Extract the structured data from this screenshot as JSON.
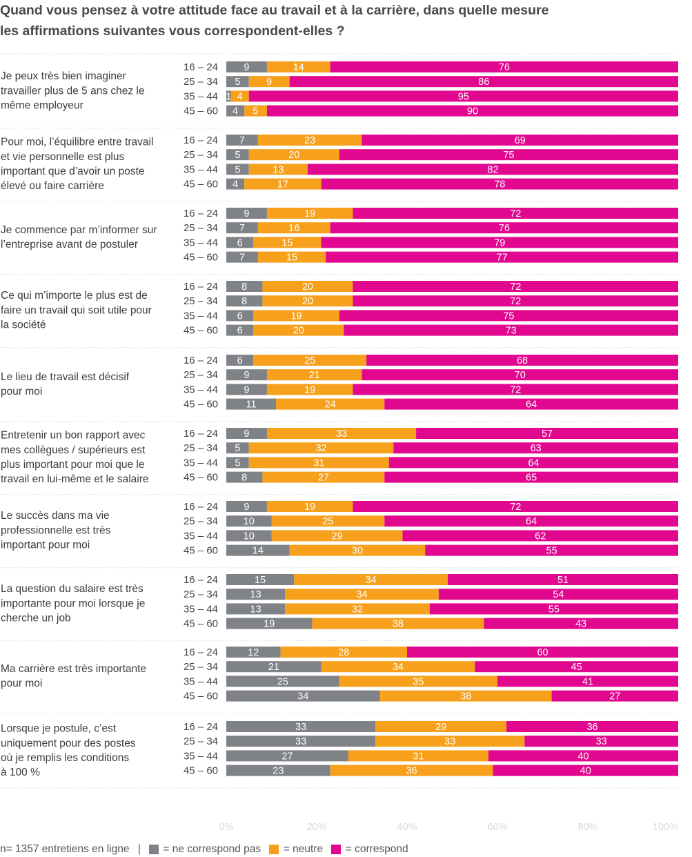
{
  "chart_data": {
    "type": "bar",
    "orientation": "horizontal",
    "stacked": true,
    "title": "Quand vous pensez à votre attitude face au travail et à la carrière, dans quelle mesure les affirmations suivantes vous correspondent-elles ?",
    "title_lines": [
      "Quand vous pensez à votre attitude face au travail et à la carrière, dans quelle mesure",
      "les affirmations suivantes vous correspondent-elles ?"
    ],
    "age_groups": [
      "16 – 24",
      "25 – 34",
      "35 – 44",
      "45 – 60"
    ],
    "series": [
      {
        "name": "ne correspond pas",
        "color": "#7f8286"
      },
      {
        "name": "neutre",
        "color": "#f7a01c"
      },
      {
        "name": "correspond",
        "color": "#e1088f"
      }
    ],
    "xlim": [
      0,
      100
    ],
    "x_ticks": [
      "0%",
      "20%",
      "40%",
      "60%",
      "80%",
      "100%"
    ],
    "grid": false,
    "legend_position": "bottom-left",
    "groups": [
      {
        "statement": [
          "Je peux très bien imaginer",
          "travailler plus de 5 ans chez le",
          "même employeur"
        ],
        "values": [
          [
            9,
            14,
            76
          ],
          [
            5,
            9,
            86
          ],
          [
            1,
            4,
            95
          ],
          [
            4,
            5,
            90
          ]
        ]
      },
      {
        "statement": [
          "Pour moi, l’équilibre entre travail",
          "et vie personnelle est plus",
          "important que d’avoir un poste",
          "élevé ou faire carrière"
        ],
        "values": [
          [
            7,
            23,
            69
          ],
          [
            5,
            20,
            75
          ],
          [
            5,
            13,
            82
          ],
          [
            4,
            17,
            78
          ]
        ]
      },
      {
        "statement": [
          "Je commence par m’informer sur",
          "l’entreprise avant de postuler"
        ],
        "values": [
          [
            9,
            19,
            72
          ],
          [
            7,
            16,
            76
          ],
          [
            6,
            15,
            79
          ],
          [
            7,
            15,
            77
          ]
        ]
      },
      {
        "statement": [
          "Ce qui m’importe le plus est de",
          "faire un travail qui soit utile pour",
          "la société"
        ],
        "values": [
          [
            8,
            20,
            72
          ],
          [
            8,
            20,
            72
          ],
          [
            6,
            19,
            75
          ],
          [
            6,
            20,
            73
          ]
        ]
      },
      {
        "statement": [
          "Le lieu de travail est décisif",
          "pour moi"
        ],
        "values": [
          [
            6,
            25,
            68
          ],
          [
            9,
            21,
            70
          ],
          [
            9,
            19,
            72
          ],
          [
            11,
            24,
            64
          ]
        ]
      },
      {
        "statement": [
          "Entretenir un bon rapport avec",
          "mes collègues / supérieurs est",
          "plus important pour moi que le",
          "travail en lui-même et le salaire"
        ],
        "values": [
          [
            9,
            33,
            57
          ],
          [
            5,
            32,
            63
          ],
          [
            5,
            31,
            64
          ],
          [
            8,
            27,
            65
          ]
        ]
      },
      {
        "statement": [
          "Le succès dans ma vie",
          "professionnelle est très",
          "important pour moi"
        ],
        "values": [
          [
            9,
            19,
            72
          ],
          [
            10,
            25,
            64
          ],
          [
            10,
            29,
            62
          ],
          [
            14,
            30,
            55
          ]
        ]
      },
      {
        "statement": [
          "La question du salaire est très",
          "importante pour moi lorsque je",
          "cherche un job"
        ],
        "values": [
          [
            15,
            34,
            51
          ],
          [
            13,
            34,
            54
          ],
          [
            13,
            32,
            55
          ],
          [
            19,
            38,
            43
          ]
        ]
      },
      {
        "statement": [
          "Ma carrière est très importante",
          "pour moi"
        ],
        "values": [
          [
            12,
            28,
            60
          ],
          [
            21,
            34,
            45
          ],
          [
            25,
            35,
            41
          ],
          [
            34,
            38,
            27
          ]
        ]
      },
      {
        "statement": [
          "Lorsque je postule, c’est",
          "uniquement pour des postes",
          "où je remplis les conditions",
          "à 100 %"
        ],
        "values": [
          [
            33,
            29,
            36
          ],
          [
            33,
            33,
            33
          ],
          [
            27,
            31,
            40
          ],
          [
            23,
            36,
            40
          ]
        ]
      }
    ]
  },
  "footer": {
    "sample_note": "n= 1357 entretiens en ligne",
    "separator": "|",
    "legend": [
      "= ne correspond pas",
      "= neutre",
      "= correspond"
    ]
  }
}
